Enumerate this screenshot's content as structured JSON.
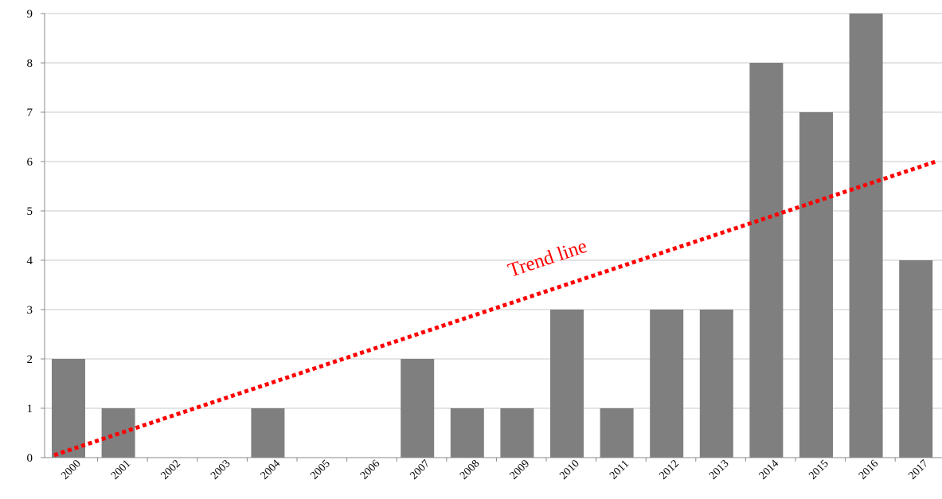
{
  "chart_data": {
    "type": "bar",
    "title": "",
    "xlabel": "",
    "ylabel": "",
    "categories": [
      "2000",
      "2001",
      "2002",
      "2003",
      "2004",
      "2005",
      "2006",
      "2007",
      "2008",
      "2009",
      "2010",
      "2011",
      "2012",
      "2013",
      "2014",
      "2015",
      "2016",
      "2017"
    ],
    "values": [
      2,
      1,
      0,
      0,
      1,
      0,
      0,
      2,
      1,
      1,
      3,
      1,
      3,
      3,
      8,
      7,
      9,
      4
    ],
    "ylim": [
      0,
      9
    ],
    "yticks": [
      0,
      1,
      2,
      3,
      4,
      5,
      6,
      7,
      8,
      9
    ],
    "grid": true,
    "legend": "none",
    "colors": {
      "bar": "#7f7f7f",
      "grid": "#c8c8c8",
      "axis": "#888888",
      "trend": "#ff0000",
      "text": "#000000"
    },
    "trend_line": {
      "label": "Trend line",
      "style": "dotted",
      "start": {
        "x": "2000",
        "y": 0.05
      },
      "end": {
        "x": "2017",
        "y": 6.0
      }
    }
  }
}
